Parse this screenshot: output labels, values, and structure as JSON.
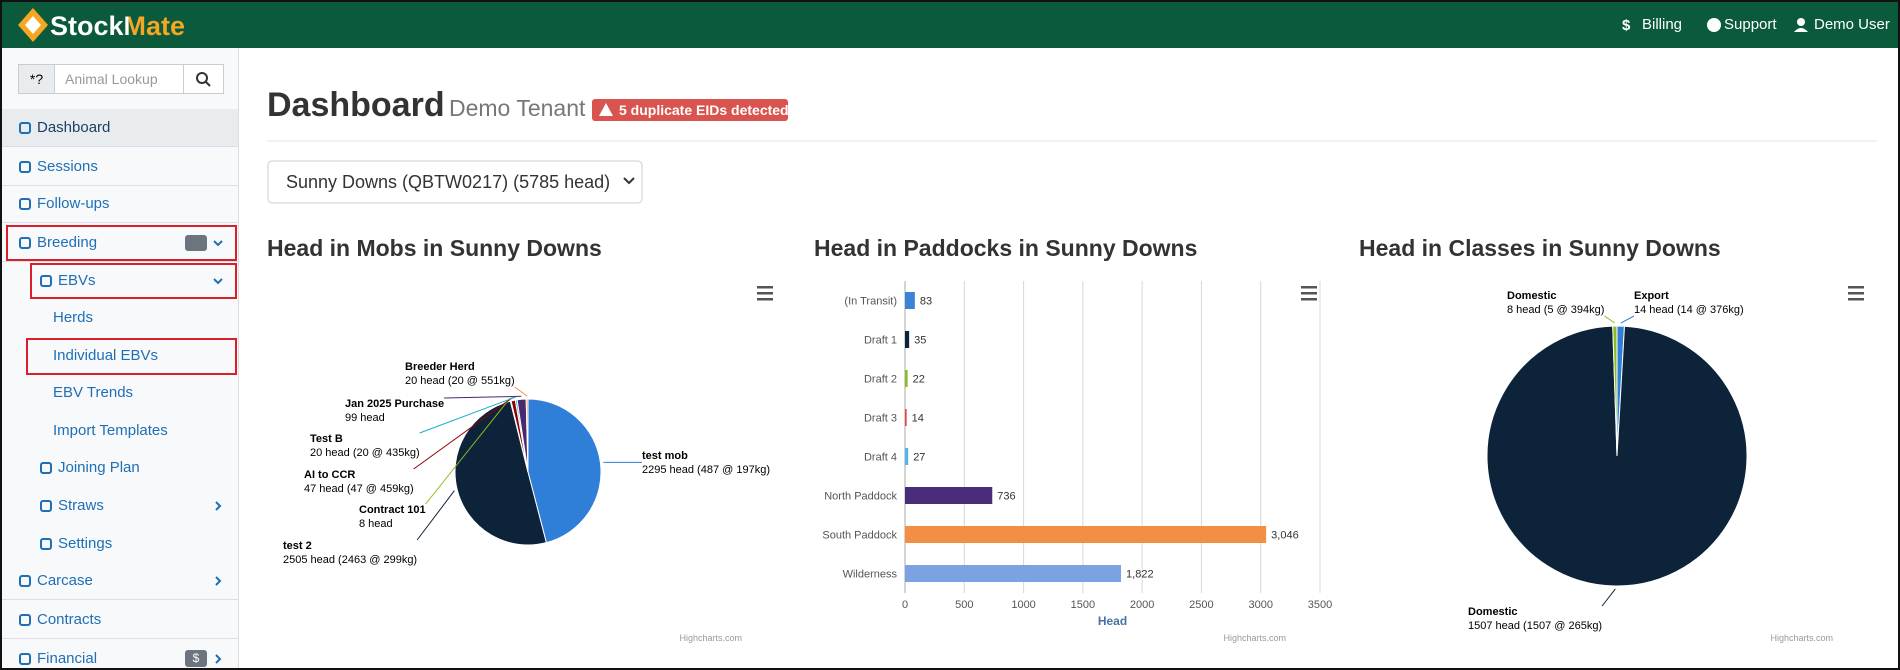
{
  "header": {
    "brand": "StockMate",
    "links": [
      "Billing",
      "Support",
      "Demo User"
    ]
  },
  "sidebar": {
    "search_addon": "*?",
    "search_placeholder": "Animal Lookup",
    "items": [
      "Dashboard",
      "Sessions",
      "Follow-ups",
      "Breeding",
      "EBVs",
      "Herds",
      "Individual EBVs",
      "EBV Trends",
      "Import Templates",
      "Joining Plan",
      "Straws",
      "Settings",
      "Carcase",
      "Contracts",
      "Financial"
    ],
    "financial_badge": "$"
  },
  "dashboard": {
    "title": "Dashboard",
    "tenant": "Demo Tenant",
    "alert": "5 duplicate EIDs detected",
    "select": "Sunny Downs (QBTW0217) (5785 head)"
  },
  "chart_data": [
    {
      "type": "pie",
      "title": "Head in Mobs in Sunny Downs",
      "credits": "Highcharts.com",
      "categories": [
        "test mob",
        "test 2",
        "Contract 101",
        "AI to CCR",
        "Test B",
        "Jan 2025 Purchase",
        "Breeder Herd"
      ],
      "values": [
        2295,
        2505,
        8,
        47,
        20,
        99,
        20
      ],
      "value_labels": [
        "2295 head (487 @ 197kg)",
        "2505 head (2463 @ 299kg)",
        "8 head",
        "47 head (47 @ 459kg)",
        "20 head (20 @ 435kg)",
        "99 head",
        "20 head (20 @ 551kg)"
      ],
      "colors": [
        "#2f7ed8",
        "#0d233a",
        "#8bbc21",
        "#910000",
        "#1aadce",
        "#492970",
        "#f28f43"
      ]
    },
    {
      "type": "hbar",
      "title": "Head in Paddocks in Sunny Downs",
      "credits": "Highcharts.com",
      "x_label": "Head",
      "categories": [
        "(In Transit)",
        "Draft 1",
        "Draft 2",
        "Draft 3",
        "Draft 4",
        "North Paddock",
        "South Paddock",
        "Wilderness"
      ],
      "values": [
        83,
        35,
        22,
        14,
        27,
        736,
        3046,
        1822
      ],
      "value_labels": [
        "83",
        "35",
        "22",
        "14",
        "27",
        "736",
        "3,046",
        "1,822"
      ],
      "colors": [
        "#3a84d8",
        "#0d233a",
        "#8bbc21",
        "#e04848",
        "#4fb8e8",
        "#4a2d7a",
        "#f28f43",
        "#7ba3e3"
      ],
      "xlim": [
        0,
        3500
      ],
      "xticks": [
        0,
        500,
        1000,
        1500,
        2000,
        2500,
        3000,
        3500
      ],
      "grid": true
    },
    {
      "type": "pie",
      "title": "Head in Classes in Sunny Downs",
      "credits": "Highcharts.com",
      "categories": [
        "Export",
        "Domestic",
        "Domestic"
      ],
      "values": [
        14,
        1507,
        8
      ],
      "value_labels": [
        "14 head (14 @ 376kg)",
        "1507 head (1507 @ 265kg)",
        "8 head (5 @ 394kg)"
      ],
      "colors": [
        "#2f7ed8",
        "#0d233a",
        "#8bbc21"
      ]
    }
  ]
}
